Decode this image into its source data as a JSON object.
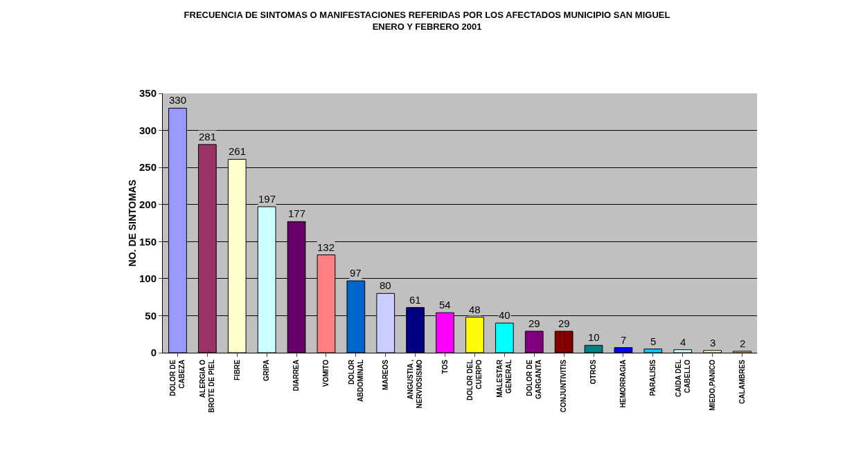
{
  "chart_data": {
    "type": "bar",
    "title": "FRECUENCIA DE SINTOMAS O MANIFESTACIONES REFERIDAS POR LOS AFECTADOS MUNICIPIO SAN MIGUEL\nENERO Y FEBRERO 2001",
    "ylabel": "NO. DE SINTOMAS",
    "categories": [
      "DOLOR DE\nCABEZA",
      "ALERGIA O\nBROTE DE PIEL",
      "FIBRE",
      "GRIPA",
      "DIARREA",
      "VOMITO",
      "DOLOR\nABDOMINAL",
      "MAREOS",
      "ANGUSTIA ,\nNERVIOSISMO",
      "TOS",
      "DOLOR DEL\nCUERPO",
      "MALESTAR\nGENERAL",
      "DOLOR DE\nGARGANTA",
      "CONJUNTIVITIS",
      "OTROS",
      "HEMORRAGIA",
      "PARALISIS",
      "CAIDA DEL\nCABELLO",
      "MIEDO,PANICO",
      "CALAMBRES"
    ],
    "values": [
      330,
      281,
      261,
      197,
      177,
      132,
      97,
      80,
      61,
      54,
      48,
      40,
      29,
      29,
      10,
      7,
      5,
      4,
      3,
      2
    ],
    "colors": [
      "#9999ff",
      "#993366",
      "#ffffcc",
      "#ccffff",
      "#660066",
      "#ff8080",
      "#0066cc",
      "#ccccff",
      "#000080",
      "#ff00ff",
      "#ffff00",
      "#00ffff",
      "#800080",
      "#800000",
      "#008080",
      "#0000ff",
      "#00ccff",
      "#ccffff",
      "#ffffcc",
      "#ffcc99"
    ],
    "ylim": [
      0,
      350
    ],
    "yticks": [
      0,
      50,
      100,
      150,
      200,
      250,
      300,
      350
    ],
    "grid": "y",
    "legend": false,
    "data_labels": true
  }
}
